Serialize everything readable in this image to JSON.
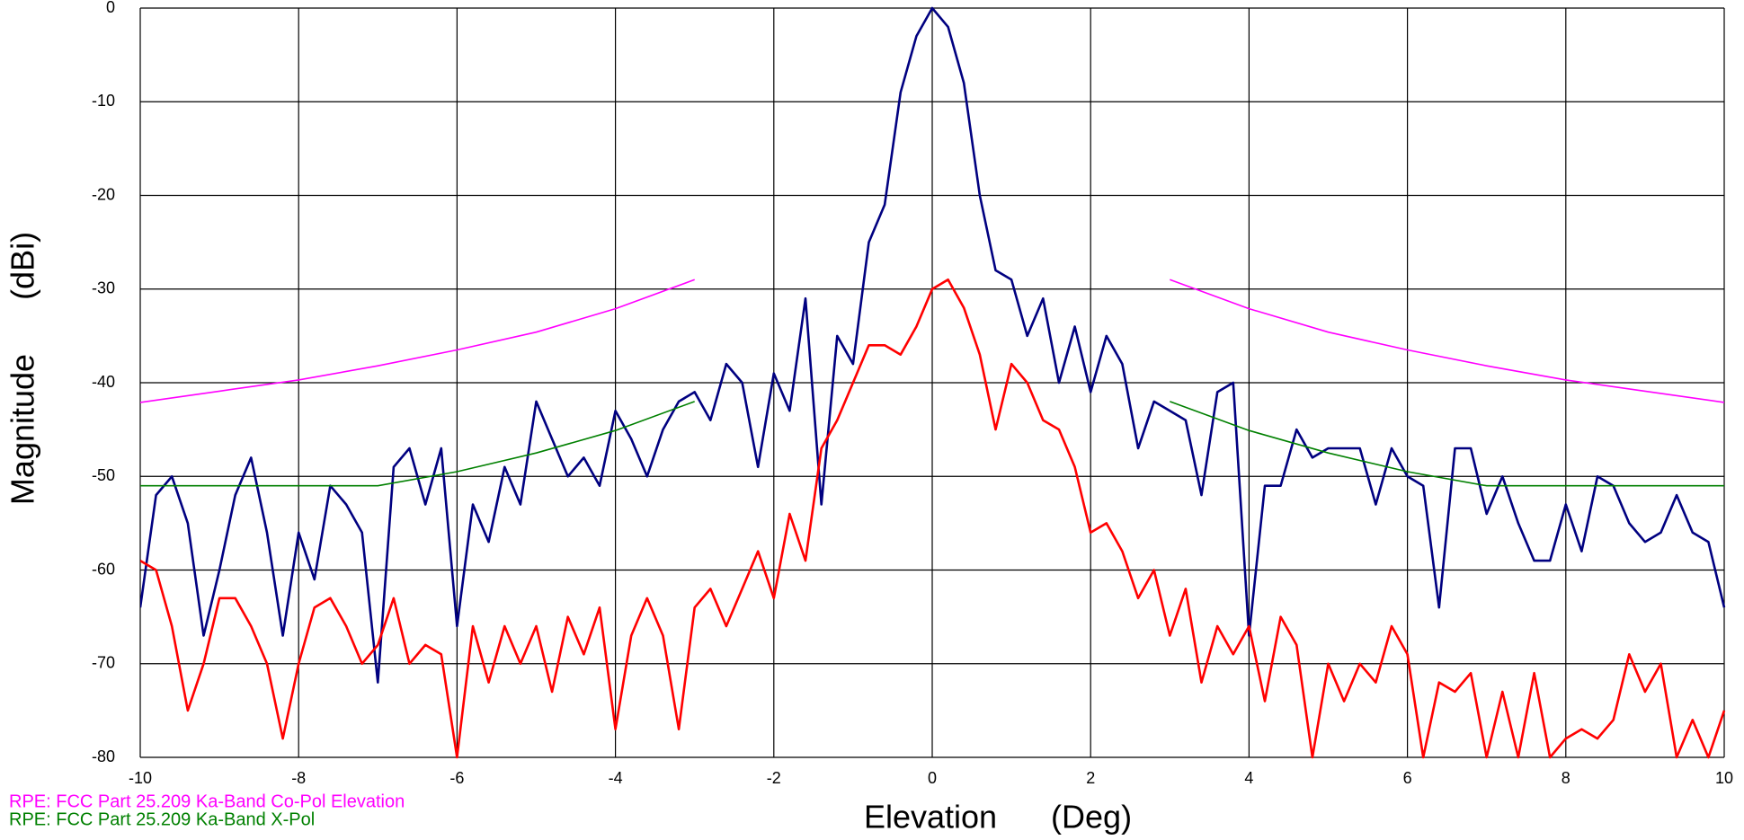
{
  "chart_data": {
    "type": "line",
    "xlabel": "Elevation      (Deg)",
    "ylabel": "Magnitude      (dBi)",
    "xlim": [
      -10,
      10
    ],
    "ylim": [
      -80,
      0
    ],
    "xticks": [
      -10,
      -8,
      -6,
      -4,
      -2,
      0,
      2,
      4,
      6,
      8,
      10
    ],
    "yticks": [
      0,
      -10,
      -20,
      -30,
      -40,
      -50,
      -60,
      -70,
      -80
    ],
    "grid": true,
    "x": [
      -10,
      -9.8,
      -9.6,
      -9.4,
      -9.2,
      -9,
      -8.8,
      -8.6,
      -8.4,
      -8.2,
      -8,
      -7.8,
      -7.6,
      -7.4,
      -7.2,
      -7,
      -6.8,
      -6.6,
      -6.4,
      -6.2,
      -6,
      -5.8,
      -5.6,
      -5.4,
      -5.2,
      -5,
      -4.8,
      -4.6,
      -4.4,
      -4.2,
      -4,
      -3.8,
      -3.6,
      -3.4,
      -3.2,
      -3,
      -2.8,
      -2.6,
      -2.4,
      -2.2,
      -2,
      -1.8,
      -1.6,
      -1.4,
      -1.2,
      -1,
      -0.8,
      -0.6,
      -0.4,
      -0.2,
      0,
      0.2,
      0.4,
      0.6,
      0.8,
      1,
      1.2,
      1.4,
      1.6,
      1.8,
      2,
      2.2,
      2.4,
      2.6,
      2.8,
      3,
      3.2,
      3.4,
      3.6,
      3.8,
      4,
      4.2,
      4.4,
      4.6,
      4.8,
      5,
      5.2,
      5.4,
      5.6,
      5.8,
      6,
      6.2,
      6.4,
      6.6,
      6.8,
      7,
      7.2,
      7.4,
      7.6,
      7.8,
      8,
      8.2,
      8.4,
      8.6,
      8.8,
      9,
      9.2,
      9.4,
      9.6,
      9.8,
      10
    ],
    "series": [
      {
        "color": "#000080",
        "values": [
          -64,
          -52,
          -50,
          -55,
          -67,
          -60,
          -52,
          -48,
          -56,
          -67,
          -56,
          -61,
          -51,
          -53,
          -56,
          -72,
          -49,
          -47,
          -53,
          -47,
          -66,
          -53,
          -57,
          -49,
          -53,
          -42,
          -46,
          -50,
          -48,
          -51,
          -43,
          -46,
          -50,
          -45,
          -42,
          -41,
          -44,
          -38,
          -40,
          -49,
          -39,
          -43,
          -31,
          -53,
          -35,
          -38,
          -25,
          -21,
          -9,
          -3,
          0,
          -2,
          -8,
          -20,
          -28,
          -29,
          -35,
          -31,
          -40,
          -34,
          -41,
          -35,
          -38,
          -47,
          -42,
          -43,
          -44,
          -52,
          -41,
          -40,
          -67,
          -51,
          -51,
          -45,
          -48,
          -47,
          -47,
          -47,
          -53,
          -47,
          -50,
          -51,
          -64,
          -47,
          -47,
          -54,
          -50,
          -55,
          -59,
          -59,
          -53,
          -58,
          -50,
          -51,
          -55,
          -57,
          -56,
          -52,
          -56,
          -57,
          -64
        ]
      },
      {
        "color": "#ff0000",
        "values": [
          -59,
          -60,
          -66,
          -75,
          -70,
          -63,
          -63,
          -66,
          -70,
          -78,
          -70,
          -64,
          -63,
          -66,
          -70,
          -68,
          -63,
          -70,
          -68,
          -69,
          -80,
          -66,
          -72,
          -66,
          -70,
          -66,
          -73,
          -65,
          -69,
          -64,
          -77,
          -67,
          -63,
          -67,
          -77,
          -64,
          -62,
          -66,
          -62,
          -58,
          -63,
          -54,
          -59,
          -47,
          -44,
          -40,
          -36,
          -36,
          -37,
          -34,
          -30,
          -29,
          -32,
          -37,
          -45,
          -38,
          -40,
          -44,
          -45,
          -49,
          -56,
          -55,
          -58,
          -63,
          -60,
          -67,
          -62,
          -72,
          -66,
          -69,
          -66,
          -74,
          -65,
          -68,
          -80,
          -70,
          -74,
          -70,
          -72,
          -66,
          -69,
          -80,
          -72,
          -73,
          -71,
          -80,
          -73,
          -80,
          -71,
          -80,
          -78,
          -77,
          -78,
          -76,
          -69,
          -73,
          -70,
          -80,
          -76,
          -80,
          -75
        ]
      },
      {
        "name": "RPE: FCC Part 25.209 Ka-Band Co-Pol Elevation",
        "color": "#ff00ff",
        "x": [
          -10,
          -9,
          -8,
          -7,
          -6,
          -5,
          -4,
          -3,
          0,
          3,
          4,
          5,
          6,
          7,
          8,
          9,
          10
        ],
        "values": [
          -42.1,
          -40.9,
          -39.7,
          -38.2,
          -36.5,
          -34.6,
          -32.1,
          -29,
          null,
          -29,
          -32.1,
          -34.6,
          -36.5,
          -38.2,
          -39.7,
          -40.9,
          -42.1
        ]
      },
      {
        "name": "RPE: FCC Part 25.209 Ka-Band X-Pol",
        "color": "#008000",
        "x": [
          -10,
          -8,
          -7,
          -6,
          -5,
          -4,
          -3,
          0,
          3,
          4,
          5,
          6,
          7,
          8,
          10
        ],
        "values": [
          -51,
          -51,
          -51,
          -49.5,
          -47.5,
          -45.1,
          -42,
          null,
          -42,
          -45.1,
          -47.5,
          -49.5,
          -51,
          -51,
          -51
        ]
      }
    ]
  }
}
